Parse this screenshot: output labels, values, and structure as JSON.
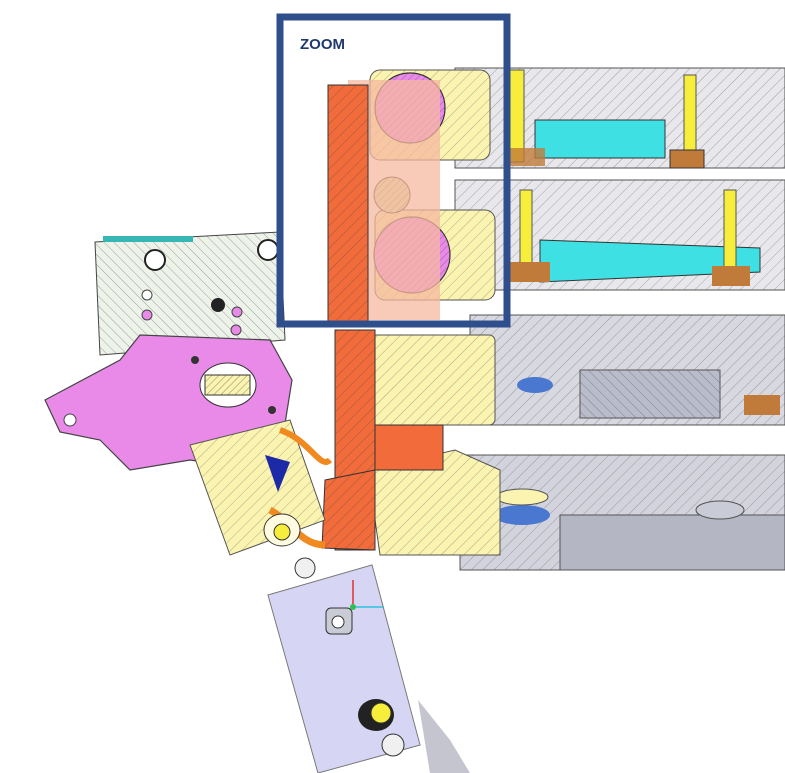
{
  "zoom_box": {
    "label": "ZOOM",
    "border_color": "#2f4e8c"
  },
  "colors": {
    "housing_orange": "#f26b3a",
    "pale_yellow": "#fbf3b0",
    "cyan": "#3fe0e4",
    "pink": "#e98ae9",
    "peach": "#f5b8a0",
    "grey_part": "#c9cbd6",
    "lavender": "#c9c8f0",
    "blue_pulley": "#4a78d0",
    "bright_yellow": "#f7ee3c",
    "brown_spring": "#c07a3a",
    "outline": "#333333"
  },
  "icons": {
    "axis_triad": "coordinate-axes-icon"
  }
}
